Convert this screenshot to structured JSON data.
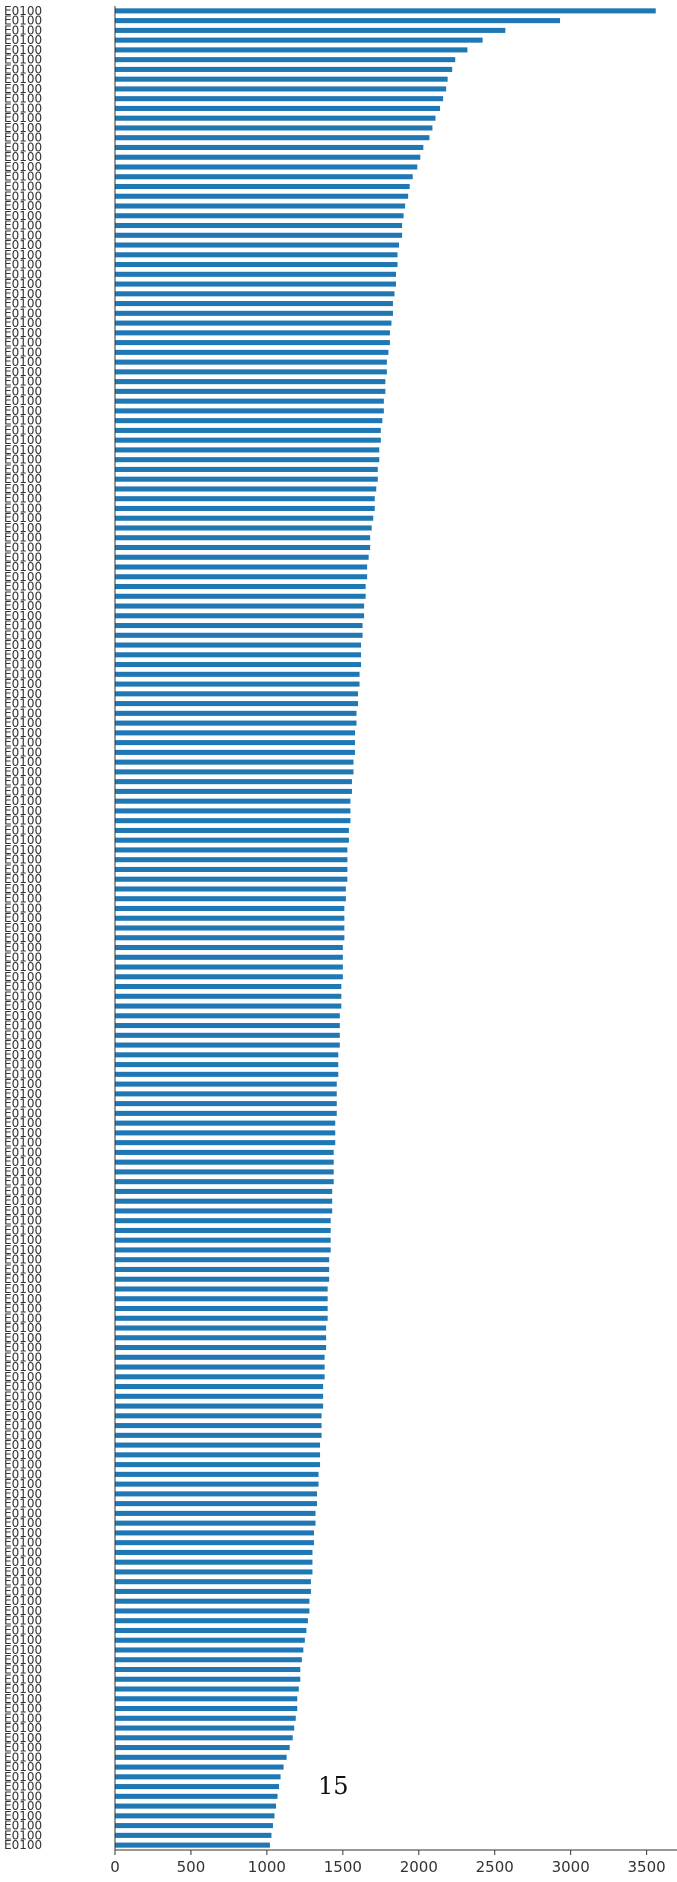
{
  "chart_data": {
    "type": "bar",
    "orientation": "horizontal",
    "bar_color": "#1f77b4",
    "axis_color": "#333333",
    "xlim": [
      0,
      3700
    ],
    "xticks": [
      0,
      500,
      1000,
      1500,
      2000,
      2500,
      3000,
      3500
    ],
    "category_label_prefix": "E0100",
    "page_annotation": "15",
    "values": [
      3560,
      2930,
      2570,
      2420,
      2320,
      2240,
      2220,
      2190,
      2180,
      2160,
      2140,
      2110,
      2090,
      2070,
      2030,
      2010,
      1990,
      1960,
      1940,
      1930,
      1910,
      1900,
      1890,
      1890,
      1870,
      1860,
      1860,
      1850,
      1850,
      1840,
      1830,
      1830,
      1820,
      1810,
      1810,
      1800,
      1790,
      1790,
      1780,
      1780,
      1770,
      1770,
      1760,
      1750,
      1750,
      1740,
      1740,
      1730,
      1730,
      1720,
      1710,
      1710,
      1700,
      1690,
      1680,
      1680,
      1670,
      1660,
      1660,
      1650,
      1650,
      1640,
      1640,
      1630,
      1630,
      1620,
      1620,
      1620,
      1610,
      1610,
      1600,
      1600,
      1590,
      1590,
      1580,
      1580,
      1580,
      1570,
      1570,
      1560,
      1560,
      1550,
      1550,
      1550,
      1540,
      1540,
      1530,
      1530,
      1530,
      1530,
      1520,
      1520,
      1510,
      1510,
      1510,
      1510,
      1500,
      1500,
      1500,
      1500,
      1490,
      1490,
      1490,
      1480,
      1480,
      1480,
      1480,
      1470,
      1470,
      1470,
      1460,
      1460,
      1460,
      1460,
      1450,
      1450,
      1450,
      1440,
      1440,
      1440,
      1440,
      1430,
      1430,
      1430,
      1420,
      1420,
      1420,
      1420,
      1410,
      1410,
      1410,
      1400,
      1400,
      1400,
      1400,
      1390,
      1390,
      1390,
      1380,
      1380,
      1380,
      1370,
      1370,
      1370,
      1360,
      1360,
      1360,
      1350,
      1350,
      1350,
      1340,
      1340,
      1330,
      1330,
      1320,
      1320,
      1310,
      1310,
      1300,
      1300,
      1300,
      1290,
      1290,
      1280,
      1280,
      1270,
      1260,
      1250,
      1240,
      1230,
      1220,
      1220,
      1210,
      1200,
      1200,
      1190,
      1180,
      1170,
      1150,
      1130,
      1110,
      1090,
      1080,
      1070,
      1060,
      1050,
      1040,
      1030,
      1020
    ]
  }
}
